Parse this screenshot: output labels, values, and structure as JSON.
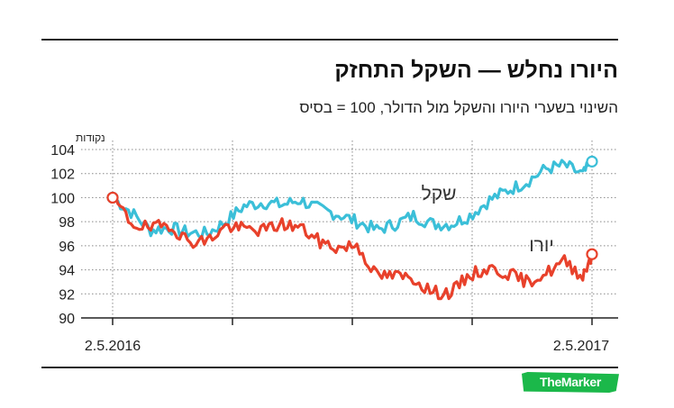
{
  "header": {
    "title": "היורו נחלש — השקל התחזק",
    "subtitle": "השינוי בשערי היורו והשקל מול הדולר, 100 = בסיס"
  },
  "brand": {
    "logo_text": "TheMarker",
    "color": "#1bb84a"
  },
  "chart_data": {
    "type": "line",
    "title": "היורו נחלש — השקל התחזק",
    "subtitle": "השינוי בשערי היורו והשקל מול הדולר, 100 = בסיס",
    "ylabel": "נקודות",
    "ylim": [
      90,
      104
    ],
    "yticks": [
      90,
      92,
      94,
      96,
      98,
      100,
      102,
      104
    ],
    "xlim": [
      "2016-05-02",
      "2017-05-02"
    ],
    "x_tick_labels": [
      "2.5.2016",
      "2.5.2017"
    ],
    "grid": true,
    "series": [
      {
        "name": "שקל",
        "color": "#3bbfd8",
        "x": [
          "2016-05-02",
          "2016-05-16",
          "2016-05-31",
          "2016-06-14",
          "2016-06-28",
          "2016-07-13",
          "2016-07-27",
          "2016-08-10",
          "2016-08-25",
          "2016-09-08",
          "2016-09-22",
          "2016-10-07",
          "2016-10-21",
          "2016-11-04",
          "2016-11-19",
          "2016-12-03",
          "2016-12-17",
          "2017-01-01",
          "2017-01-15",
          "2017-01-29",
          "2017-02-13",
          "2017-02-27",
          "2017-03-13",
          "2017-03-28",
          "2017-04-11",
          "2017-04-25",
          "2017-05-02"
        ],
        "values": [
          100,
          98.8,
          97.3,
          97.5,
          97.1,
          97.0,
          98.0,
          99.3,
          99.6,
          99.4,
          99.8,
          99.0,
          98.6,
          98.0,
          97.3,
          97.8,
          98.5,
          97.8,
          97.8,
          98.5,
          99.8,
          100.6,
          101.3,
          102.4,
          102.7,
          101.9,
          103.0
        ]
      },
      {
        "name": "יורו",
        "color": "#e8412b",
        "x": [
          "2016-05-02",
          "2016-05-16",
          "2016-05-31",
          "2016-06-14",
          "2016-06-28",
          "2016-07-13",
          "2016-07-27",
          "2016-08-10",
          "2016-08-25",
          "2016-09-08",
          "2016-09-22",
          "2016-10-07",
          "2016-10-21",
          "2016-11-04",
          "2016-11-19",
          "2016-12-03",
          "2016-12-17",
          "2017-01-01",
          "2017-01-15",
          "2017-01-29",
          "2017-02-13",
          "2017-02-27",
          "2017-03-13",
          "2017-03-28",
          "2017-04-11",
          "2017-04-25",
          "2017-05-02"
        ],
        "values": [
          100,
          97.9,
          97.4,
          97.8,
          96.4,
          96.4,
          97.6,
          97.4,
          97.3,
          97.8,
          97.5,
          96.3,
          95.8,
          96.1,
          93.5,
          93.5,
          93.3,
          92.1,
          92.1,
          93.6,
          94.1,
          93.7,
          93.0,
          93.7,
          94.7,
          93.5,
          95.3
        ]
      }
    ],
    "annotations": [
      {
        "text": "שקל",
        "series": "שקל"
      },
      {
        "text": "יורו",
        "series": "יורו"
      }
    ]
  }
}
